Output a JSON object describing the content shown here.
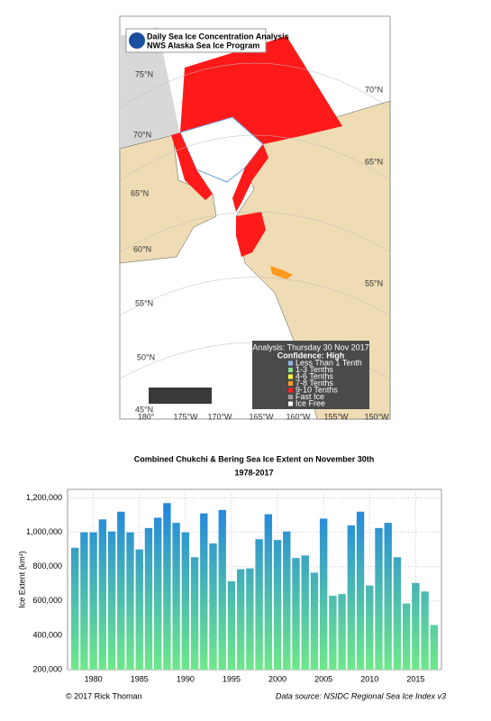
{
  "map": {
    "title": "Daily Sea Ice Concentration Analysis",
    "subtitle": "NWS Alaska Sea Ice Program",
    "lat_labels_left": [
      "75°N",
      "70°N",
      "65°N",
      "60°N",
      "55°N",
      "50°N",
      "45°N"
    ],
    "lat_labels_right": [
      "70°N",
      "65°N",
      "55°N"
    ],
    "lon_labels": [
      "180°",
      "175°W",
      "170°W",
      "165°W",
      "160°W",
      "155°W",
      "150°W"
    ],
    "legend": {
      "title": "Analysis: Thursday 30 Nov 2017",
      "confidence": "Confidence: High",
      "items": [
        {
          "label": "Less Than 1 Tenth",
          "color": "#8fb8e8"
        },
        {
          "label": "1-3 Tenths",
          "color": "#8ee08e"
        },
        {
          "label": "4-6 Tenths",
          "color": "#ffff40"
        },
        {
          "label": "7-8 Tenths",
          "color": "#ff9a20"
        },
        {
          "label": "9-10 Tenths",
          "color": "#ff2020"
        },
        {
          "label": "Fast Ice",
          "color": "#a0a0a0"
        },
        {
          "label": "Ice Free",
          "color": "#ffffff"
        }
      ]
    }
  },
  "chart_data": {
    "type": "bar",
    "title": "Combined Chukchi & Bering Sea Ice Extent on November 30th",
    "subtitle": "1978-2017",
    "y_label": "Ice Extent (km²)",
    "x": [
      1978,
      1979,
      1980,
      1981,
      1982,
      1983,
      1984,
      1985,
      1986,
      1987,
      1988,
      1989,
      1990,
      1991,
      1992,
      1993,
      1994,
      1995,
      1996,
      1997,
      1998,
      1999,
      2000,
      2001,
      2002,
      2003,
      2004,
      2005,
      2006,
      2007,
      2008,
      2009,
      2010,
      2011,
      2012,
      2013,
      2014,
      2015,
      2016,
      2017
    ],
    "values": [
      910000,
      1000000,
      1000000,
      1075000,
      1005000,
      1120000,
      1000000,
      900000,
      1025000,
      1085000,
      1170000,
      1055000,
      1000000,
      855000,
      1110000,
      935000,
      1130000,
      715000,
      785000,
      790000,
      960000,
      1105000,
      955000,
      1005000,
      850000,
      865000,
      765000,
      1080000,
      630000,
      640000,
      1040000,
      1120000,
      690000,
      1025000,
      1055000,
      855000,
      585000,
      705000,
      655000,
      460000
    ],
    "color": "#1c7ce6",
    "gradient_color": "#6ee88a",
    "xlim": [
      1977.2,
      2017.8
    ],
    "xticks": [
      1980,
      1985,
      1990,
      1995,
      2000,
      2005,
      2010,
      2015
    ],
    "ylim": [
      200000,
      1250000
    ],
    "yticks": [
      {
        "value": 200000,
        "label": "200,000"
      },
      {
        "value": 400000,
        "label": "400,000"
      },
      {
        "value": 600000,
        "label": "600,000"
      },
      {
        "value": 800000,
        "label": "800,000"
      },
      {
        "value": 1000000,
        "label": "1,000,000"
      },
      {
        "value": 1200000,
        "label": "1,200,000"
      }
    ],
    "grid": true
  },
  "footer": {
    "credit": "© 2017 Rick Thoman",
    "source": "Data source: NSIDC Regional Sea Ice Index v3"
  }
}
